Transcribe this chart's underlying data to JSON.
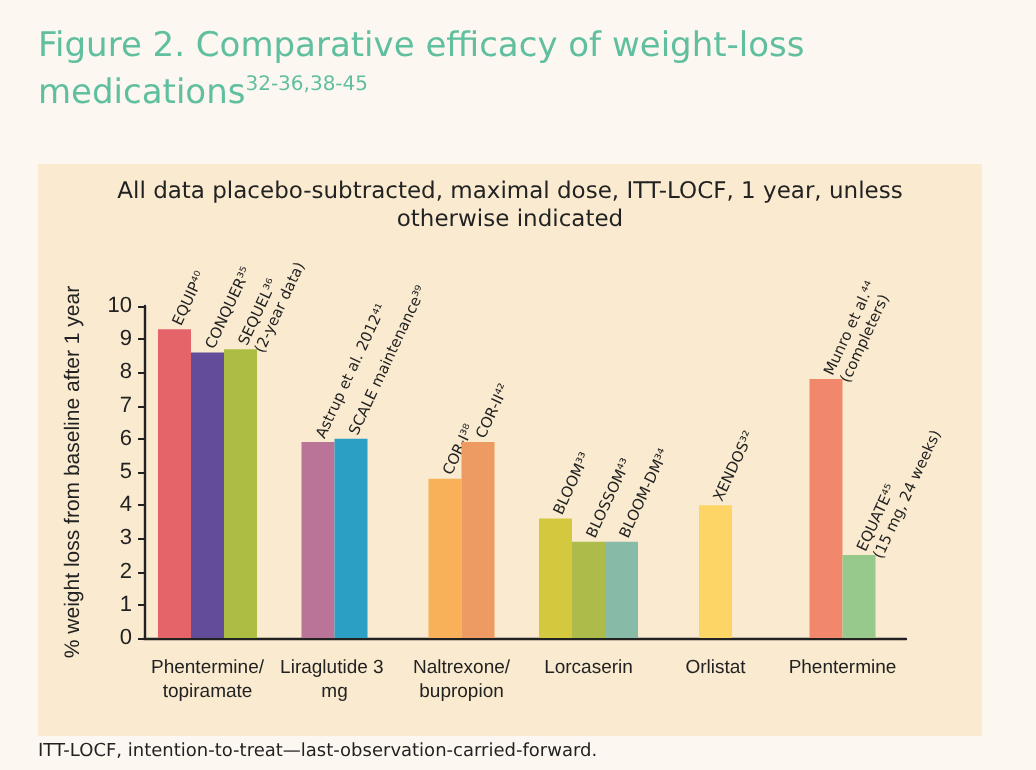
{
  "chart_data": {
    "type": "bar",
    "title": "Figure 2. Comparative efficacy of weight-loss medications$^{32-36,38-45}$",
    "subtitle": "All data placebo-subtracted, maximal dose, ITT-LOCF, 1 year, unless otherwise indicated",
    "ylabel": "% weight loss from baseline after 1 year",
    "annotations": [
      "ITT-LOCF, intention-to-treat—last-observation-carried-forward."
    ],
    "categories": [
      "Phentermine/topiramate",
      "Liraglutide 3 mg",
      "Naltrexone/bupropion",
      "Lorcaserin",
      "Orlistat",
      "Phentermine"
    ],
    "series": [
      {
        "name": "EQUIP⁴⁰",
        "color": "#e4646a",
        "values": [
          9.3,
          null,
          null,
          null,
          null,
          null
        ]
      },
      {
        "name": "CONQUER³⁵",
        "color": "#634d9b",
        "values": [
          8.6,
          null,
          null,
          null,
          null,
          null
        ]
      },
      {
        "name": "SEQUEL³⁶ (2-year data)",
        "color": "#adbd44",
        "values": [
          8.7,
          null,
          null,
          null,
          null,
          null
        ]
      },
      {
        "name": "Astrup et al. 2012⁴¹",
        "color": "#b97497",
        "values": [
          null,
          5.9,
          null,
          null,
          null,
          null
        ]
      },
      {
        "name": "SCALE maintenance³⁹",
        "color": "#2ba0c4",
        "values": [
          null,
          6.0,
          null,
          null,
          null,
          null
        ]
      },
      {
        "name": "COR-I³⁸",
        "color": "#f8b158",
        "values": [
          null,
          null,
          4.8,
          null,
          null,
          null
        ]
      },
      {
        "name": "COR-II⁴²",
        "color": "#ee9a63",
        "values": [
          null,
          null,
          5.9,
          null,
          null,
          null
        ]
      },
      {
        "name": "BLOOM³³",
        "color": "#d4c83e",
        "values": [
          null,
          null,
          null,
          3.6,
          null,
          null
        ]
      },
      {
        "name": "BLOSSOM⁴³",
        "color": "#adbb4a",
        "values": [
          null,
          null,
          null,
          2.9,
          null,
          null
        ]
      },
      {
        "name": "BLOOM-DM³⁴",
        "color": "#88baa8",
        "values": [
          null,
          null,
          null,
          2.9,
          null,
          null
        ]
      },
      {
        "name": "XENDOS³²",
        "color": "#fdd567",
        "values": [
          null,
          null,
          null,
          null,
          4.0,
          null
        ]
      },
      {
        "name": "Munro et al.⁴⁴ (completers)",
        "color": "#f2886b",
        "values": [
          null,
          null,
          null,
          null,
          null,
          7.8
        ]
      },
      {
        "name": "EQUATE⁴⁵ (15 mg, 24 weeks)",
        "color": "#98c98c",
        "values": [
          null,
          null,
          null,
          null,
          null,
          2.5
        ]
      }
    ],
    "ylim": [
      0,
      10
    ],
    "yticks": [
      0,
      1,
      2,
      3,
      4,
      5,
      6,
      7,
      8,
      9,
      10
    ],
    "grid": false,
    "legend": false
  }
}
